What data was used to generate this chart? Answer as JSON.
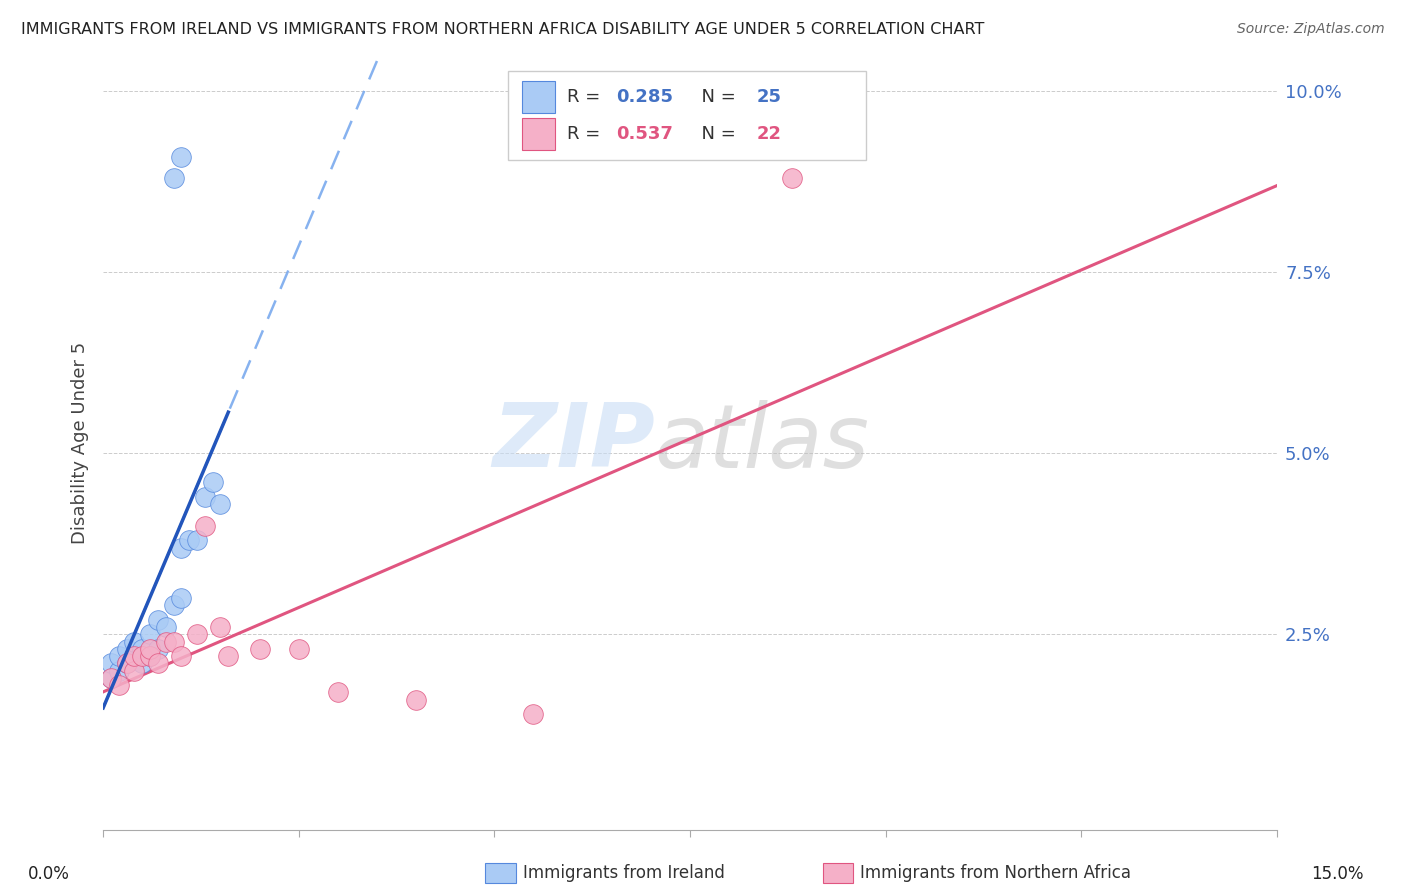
{
  "title": "IMMIGRANTS FROM IRELAND VS IMMIGRANTS FROM NORTHERN AFRICA DISABILITY AGE UNDER 5 CORRELATION CHART",
  "source": "Source: ZipAtlas.com",
  "ylabel": "Disability Age Under 5",
  "x_lim": [
    0.0,
    0.15
  ],
  "y_lim": [
    -0.002,
    0.105
  ],
  "ireland_R": 0.285,
  "ireland_N": 25,
  "africa_R": 0.537,
  "africa_N": 22,
  "ireland_color": "#aacbf5",
  "africa_color": "#f5b0c8",
  "ireland_edge_color": "#5588dd",
  "africa_edge_color": "#e05580",
  "ireland_line_color": "#7aaaee",
  "ireland_solid_color": "#2255bb",
  "africa_line_color": "#e05580",
  "watermark_zip": "ZIP",
  "watermark_atlas": "atlas",
  "ireland_x": [
    0.001,
    0.001,
    0.002,
    0.002,
    0.003,
    0.003,
    0.004,
    0.004,
    0.005,
    0.005,
    0.006,
    0.006,
    0.007,
    0.007,
    0.008,
    0.009,
    0.01,
    0.01,
    0.011,
    0.012,
    0.013,
    0.014,
    0.015,
    0.009,
    0.01
  ],
  "ireland_y": [
    0.019,
    0.021,
    0.02,
    0.022,
    0.021,
    0.023,
    0.022,
    0.024,
    0.021,
    0.023,
    0.022,
    0.025,
    0.023,
    0.027,
    0.026,
    0.029,
    0.03,
    0.037,
    0.038,
    0.038,
    0.044,
    0.046,
    0.043,
    0.088,
    0.091
  ],
  "africa_x": [
    0.001,
    0.002,
    0.003,
    0.004,
    0.004,
    0.005,
    0.006,
    0.006,
    0.007,
    0.008,
    0.009,
    0.01,
    0.012,
    0.013,
    0.015,
    0.016,
    0.02,
    0.025,
    0.03,
    0.04,
    0.055,
    0.088
  ],
  "africa_y": [
    0.019,
    0.018,
    0.021,
    0.02,
    0.022,
    0.022,
    0.022,
    0.023,
    0.021,
    0.024,
    0.024,
    0.022,
    0.025,
    0.04,
    0.026,
    0.022,
    0.023,
    0.023,
    0.017,
    0.016,
    0.014,
    0.088
  ]
}
